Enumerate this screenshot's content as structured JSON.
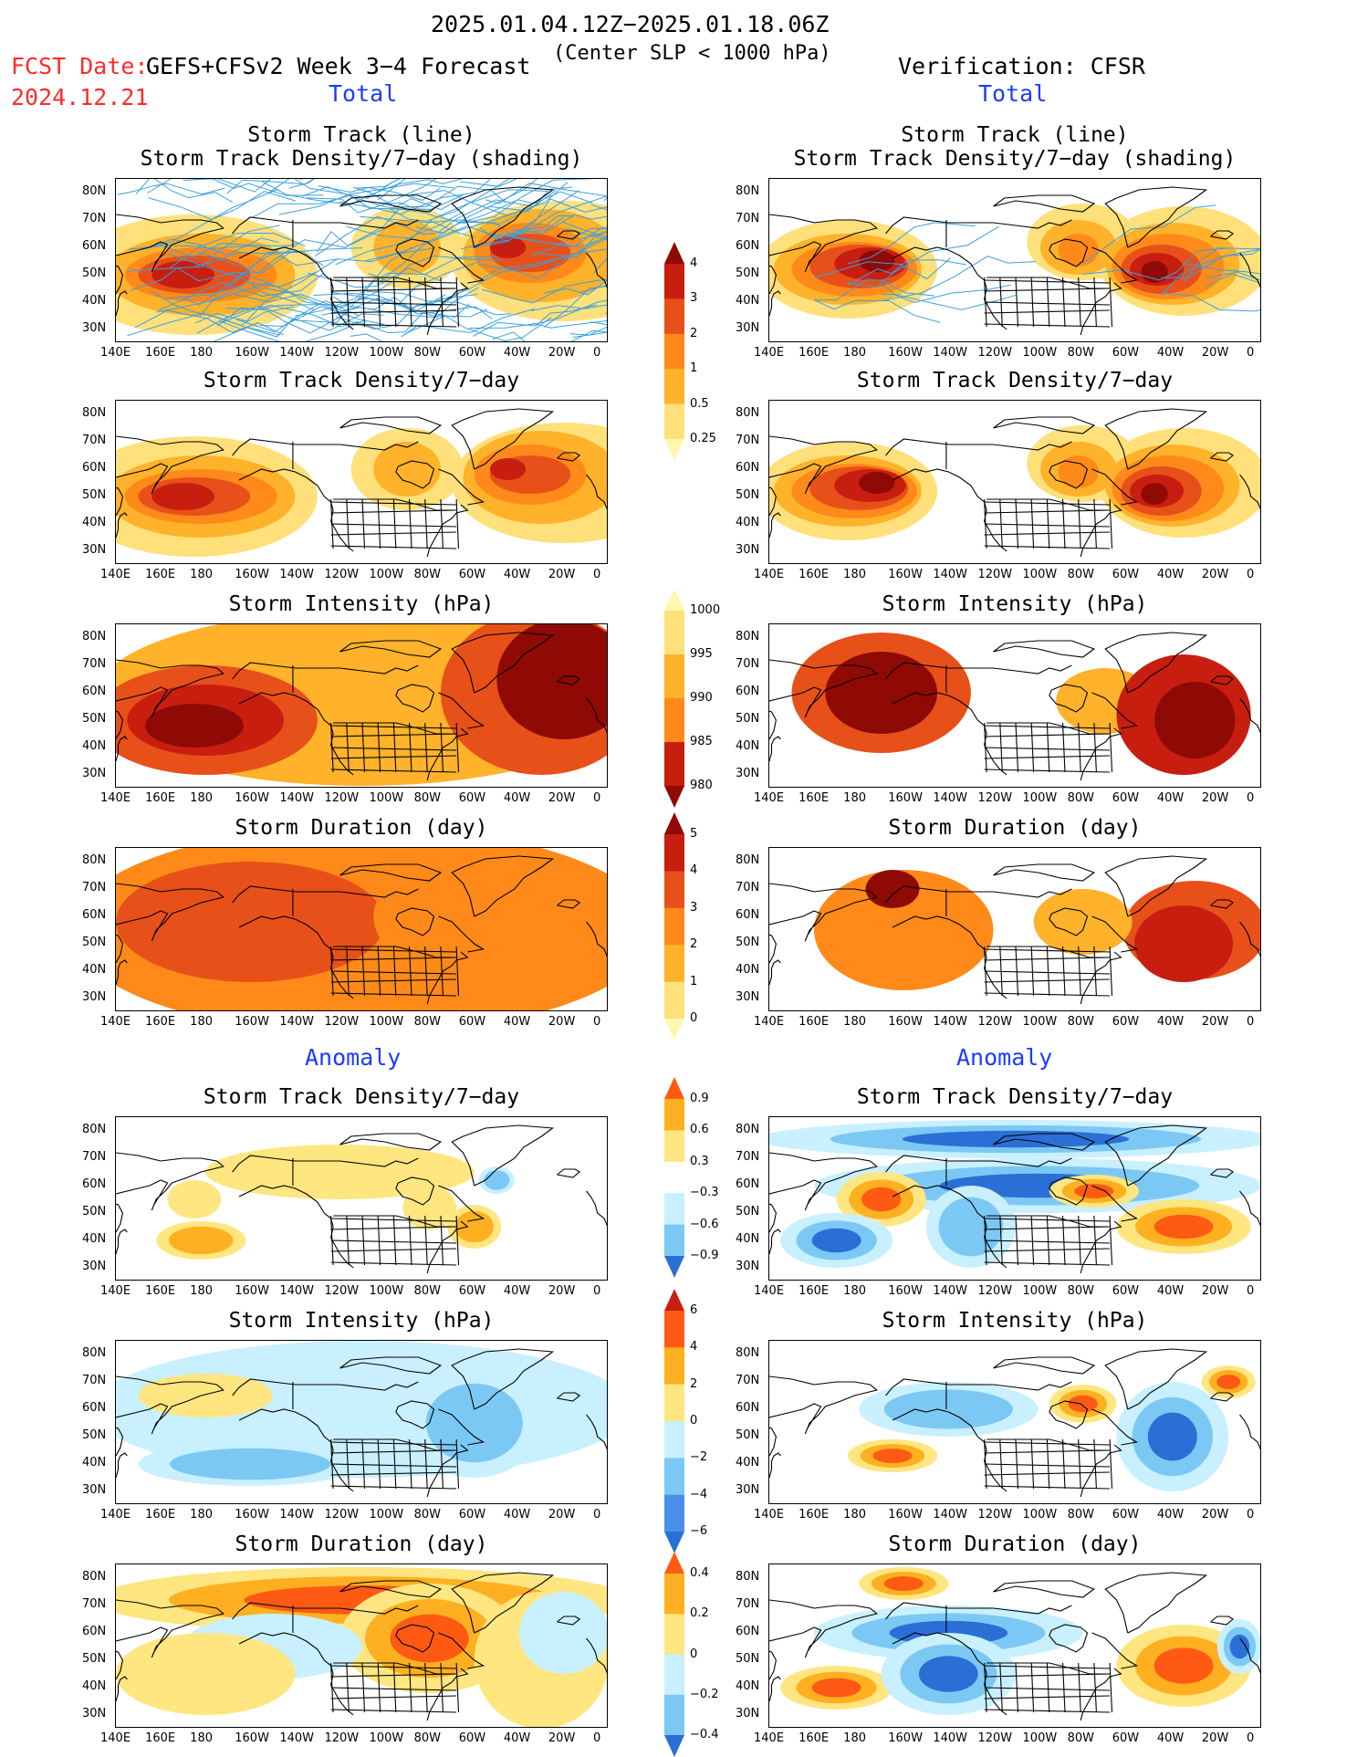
{
  "header": {
    "main_title": "2025.01.04.12Z−2025.01.18.06Z",
    "subtitle": "(Center SLP < 1000 hPa)",
    "fcst_label": "FCST Date:",
    "fcst_date": "2024.12.21",
    "model": "GEFS+CFSv2 Week 3−4 Forecast",
    "verification": "Verification: CFSR"
  },
  "sections": {
    "total": "Total",
    "anomaly": "Anomaly"
  },
  "panel_titles": {
    "track_line": "Storm Track (line)",
    "track_shading": "Storm Track Density/7−day (shading)",
    "density": "Storm Track Density/7−day",
    "intensity": "Storm Intensity (hPa)",
    "duration": "Storm Duration (day)"
  },
  "axes": {
    "lon_ticks": [
      "140E",
      "160E",
      "180",
      "160W",
      "140W",
      "120W",
      "100W",
      "80W",
      "60W",
      "40W",
      "20W",
      "0"
    ],
    "lat_ticks": [
      "80N",
      "70N",
      "60N",
      "50N",
      "40N",
      "30N"
    ]
  },
  "colorbars": {
    "density_total": [
      "4",
      "3",
      "2",
      "1",
      "0.5",
      "0.25"
    ],
    "intensity_total": [
      "1000",
      "995",
      "990",
      "985",
      "980"
    ],
    "duration_total": [
      "5",
      "4",
      "3",
      "2",
      "1",
      "0"
    ],
    "density_anom": [
      "0.9",
      "0.6",
      "0.3",
      "−0.3",
      "−0.6",
      "−0.9"
    ],
    "intensity_anom": [
      "6",
      "4",
      "2",
      "0",
      "−2",
      "−4",
      "−6"
    ],
    "duration_anom": [
      "0.4",
      "0.2",
      "0",
      "−0.2",
      "−0.4"
    ]
  },
  "colors": {
    "dens": [
      "#fff7b0",
      "#ffe07a",
      "#ffb22a",
      "#ff8a1a",
      "#e8501a",
      "#c81e10",
      "#8f0a05"
    ],
    "anom_pos": [
      "#ffe680",
      "#ffb020",
      "#ff5a14"
    ],
    "anom_neg": [
      "#c8f0ff",
      "#7cc8f5",
      "#2a6fd6"
    ],
    "track": "#3aa0e0"
  }
}
